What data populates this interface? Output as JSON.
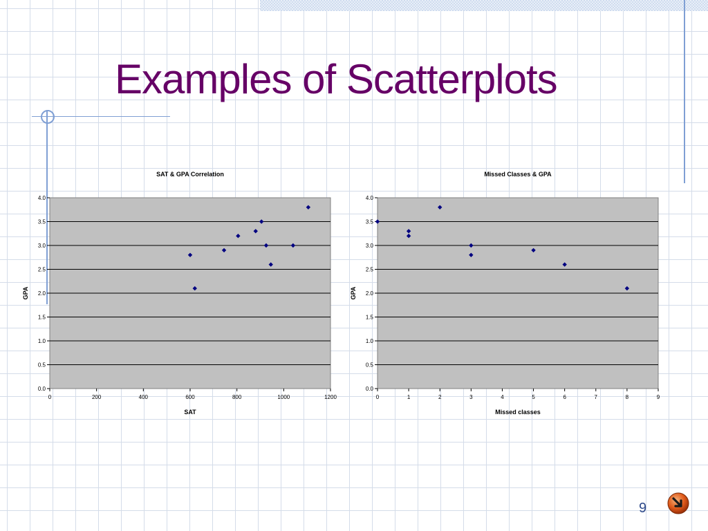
{
  "slide": {
    "title": "Examples of Scatterplots",
    "page_number": "9"
  },
  "icons": {
    "nav": "next-arrow-icon",
    "decoration": "circle-decoration-icon"
  },
  "colors": {
    "title": "#660066",
    "plot_background": "#c0c0c0",
    "marker": "#000080",
    "accent_lines": "#7f9fd4"
  },
  "chart_data": [
    {
      "type": "scatter",
      "title": "SAT & GPA Correlation",
      "xlabel": "SAT",
      "ylabel": "GPA",
      "xlim": [
        0,
        1200
      ],
      "ylim": [
        0,
        4
      ],
      "xticks": [
        0,
        200,
        400,
        600,
        800,
        1000,
        1200
      ],
      "yticks": [
        "0.0",
        "0.5",
        "1.0",
        "1.5",
        "2.0",
        "2.5",
        "3.0",
        "3.5",
        "4.0"
      ],
      "grid": "horizontal",
      "legend": "none",
      "points": [
        {
          "x": 600,
          "y": 2.8
        },
        {
          "x": 620,
          "y": 2.1
        },
        {
          "x": 745,
          "y": 2.9
        },
        {
          "x": 805,
          "y": 3.2
        },
        {
          "x": 880,
          "y": 3.3
        },
        {
          "x": 905,
          "y": 3.5
        },
        {
          "x": 925,
          "y": 3.0
        },
        {
          "x": 945,
          "y": 2.6
        },
        {
          "x": 1040,
          "y": 3.0
        },
        {
          "x": 1105,
          "y": 3.8
        }
      ]
    },
    {
      "type": "scatter",
      "title": "Missed Classes & GPA",
      "xlabel": "Missed classes",
      "ylabel": "GPA",
      "xlim": [
        0,
        9
      ],
      "ylim": [
        0,
        4
      ],
      "xticks": [
        0,
        1,
        2,
        3,
        4,
        5,
        6,
        7,
        8,
        9
      ],
      "yticks": [
        "0.0",
        "0.5",
        "1.0",
        "1.5",
        "2.0",
        "2.5",
        "3.0",
        "3.5",
        "4.0"
      ],
      "grid": "horizontal",
      "legend": "none",
      "points": [
        {
          "x": 0,
          "y": 3.5
        },
        {
          "x": 1,
          "y": 3.3
        },
        {
          "x": 1,
          "y": 3.2
        },
        {
          "x": 2,
          "y": 3.8
        },
        {
          "x": 3,
          "y": 3.0
        },
        {
          "x": 3,
          "y": 2.8
        },
        {
          "x": 5,
          "y": 2.9
        },
        {
          "x": 6,
          "y": 2.6
        },
        {
          "x": 8,
          "y": 2.1
        }
      ]
    }
  ]
}
